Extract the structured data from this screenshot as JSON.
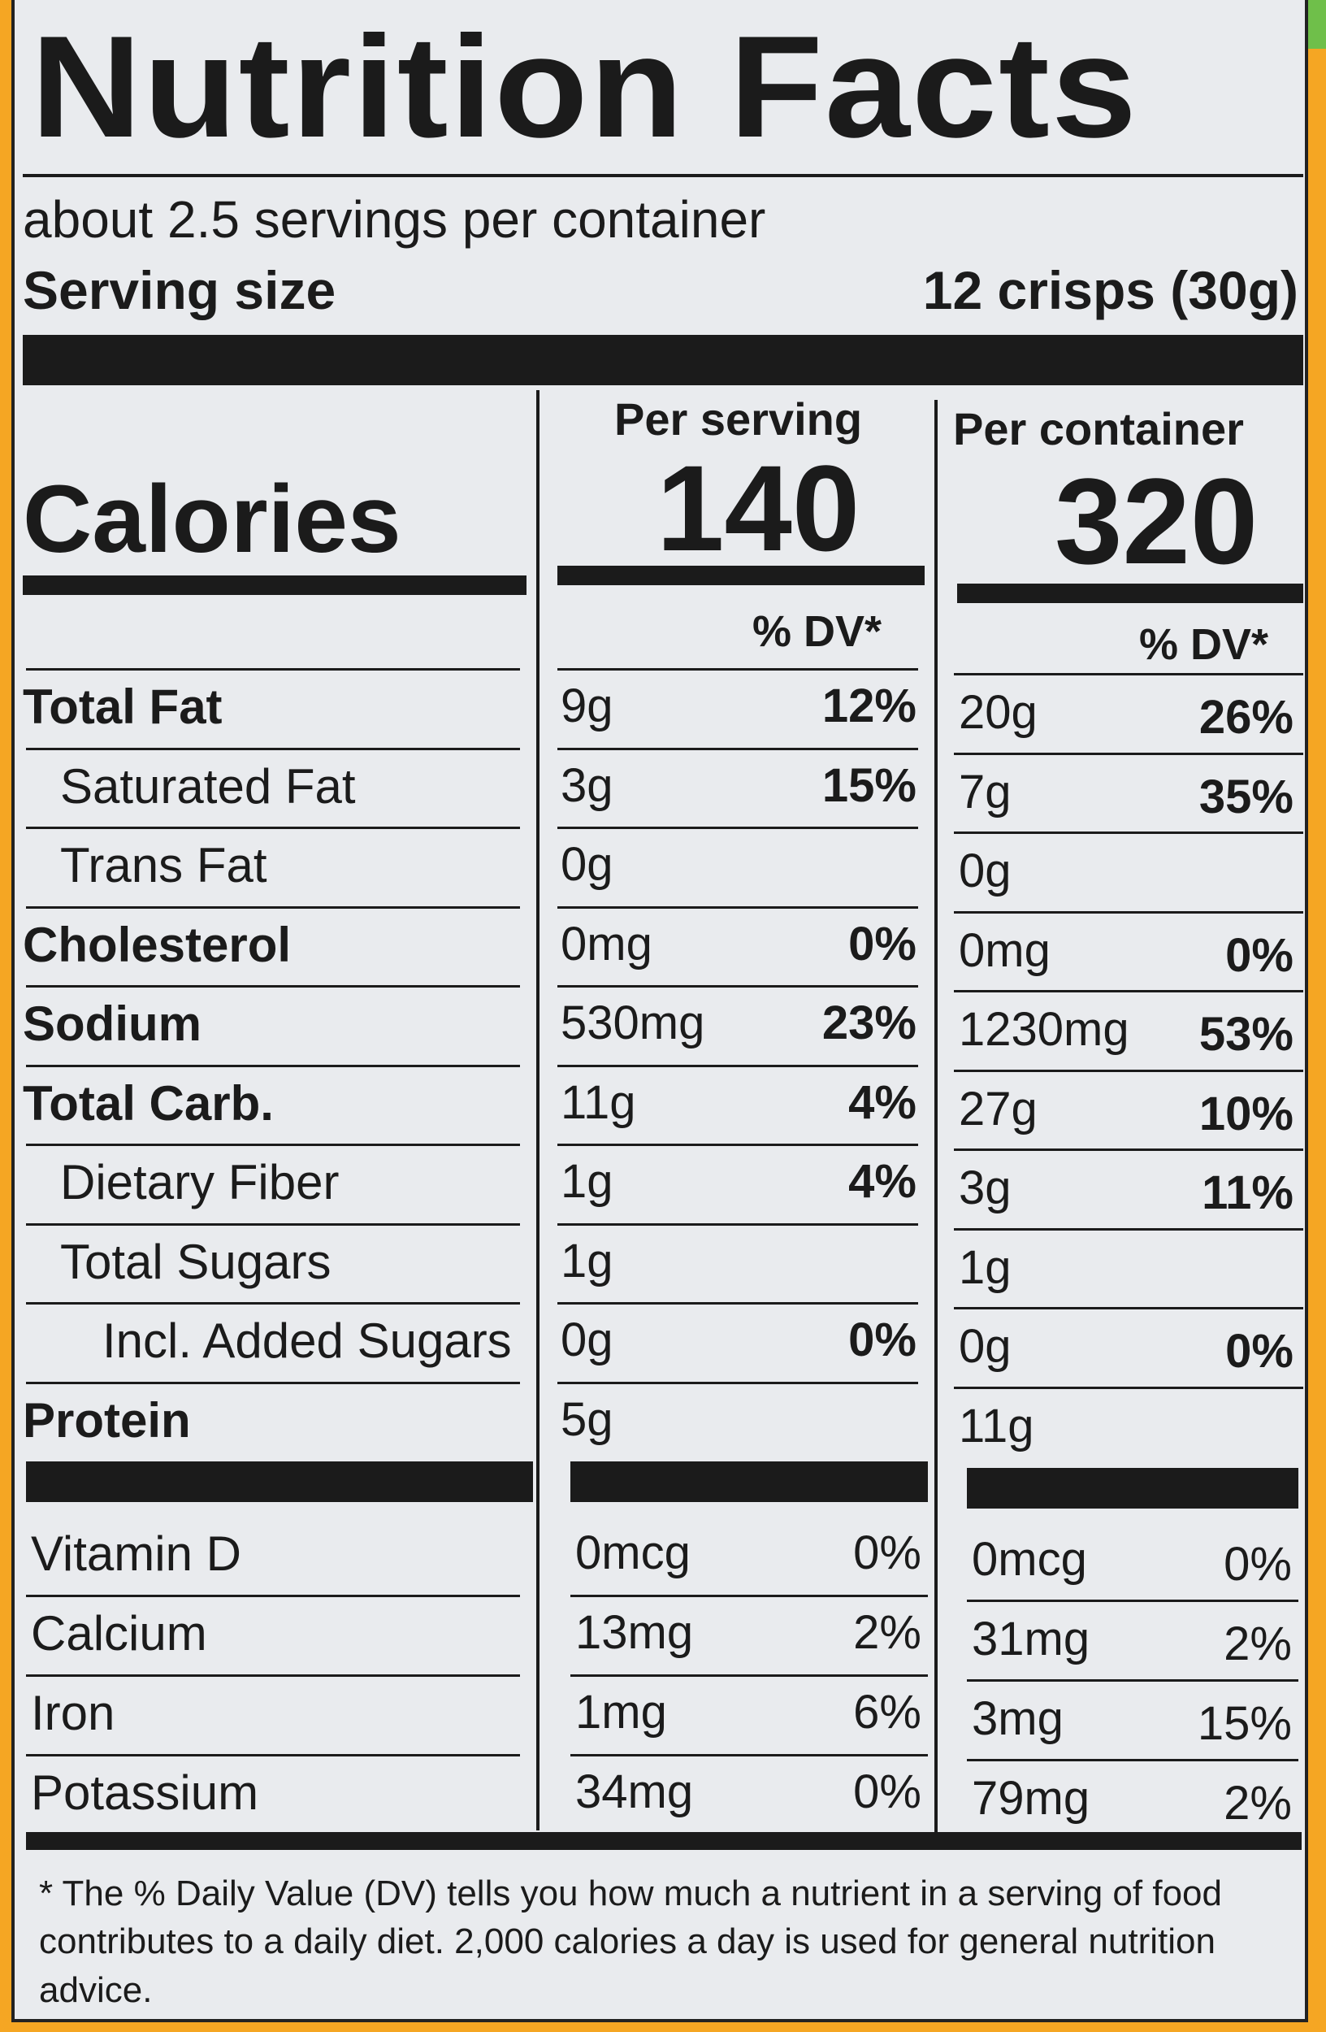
{
  "title": "Nutrition Facts",
  "servings_per_container": "about 2.5 servings per container",
  "serving_size_label": "Serving size",
  "serving_size_value": "12 crisps (30g)",
  "calories_label": "Calories",
  "per_serving_label": "Per serving",
  "per_container_label": "Per container",
  "calories_per_serving": "140",
  "calories_per_container": "320",
  "dv_header": "% DV*",
  "nutrients": [
    {
      "name": "Total Fat",
      "bold": true,
      "indent": 0,
      "s_amt": "9g",
      "s_dv": "12%",
      "c_amt": "20g",
      "c_dv": "26%"
    },
    {
      "name": "Saturated Fat",
      "bold": false,
      "indent": 1,
      "s_amt": "3g",
      "s_dv": "15%",
      "c_amt": "7g",
      "c_dv": "35%"
    },
    {
      "name": "Trans Fat",
      "bold": false,
      "indent": 1,
      "s_amt": "0g",
      "s_dv": "",
      "c_amt": "0g",
      "c_dv": ""
    },
    {
      "name": "Cholesterol",
      "bold": true,
      "indent": 0,
      "s_amt": "0mg",
      "s_dv": "0%",
      "c_amt": "0mg",
      "c_dv": "0%"
    },
    {
      "name": "Sodium",
      "bold": true,
      "indent": 0,
      "s_amt": "530mg",
      "s_dv": "23%",
      "c_amt": "1230mg",
      "c_dv": "53%"
    },
    {
      "name": "Total Carb.",
      "bold": true,
      "indent": 0,
      "s_amt": "11g",
      "s_dv": "4%",
      "c_amt": "27g",
      "c_dv": "10%"
    },
    {
      "name": "Dietary Fiber",
      "bold": false,
      "indent": 1,
      "s_amt": "1g",
      "s_dv": "4%",
      "c_amt": "3g",
      "c_dv": "11%"
    },
    {
      "name": "Total Sugars",
      "bold": false,
      "indent": 1,
      "s_amt": "1g",
      "s_dv": "",
      "c_amt": "1g",
      "c_dv": ""
    },
    {
      "name": "Incl. Added Sugars",
      "bold": false,
      "indent": 2,
      "s_amt": "0g",
      "s_dv": "0%",
      "c_amt": "0g",
      "c_dv": "0%"
    },
    {
      "name": "Protein",
      "bold": true,
      "indent": 0,
      "s_amt": "5g",
      "s_dv": "",
      "c_amt": "11g",
      "c_dv": ""
    }
  ],
  "vitamins": [
    {
      "name": "Vitamin D",
      "s_amt": "0mcg",
      "s_dv": "0%",
      "c_amt": "0mcg",
      "c_dv": "0%"
    },
    {
      "name": "Calcium",
      "s_amt": "13mg",
      "s_dv": "2%",
      "c_amt": "31mg",
      "c_dv": "2%"
    },
    {
      "name": "Iron",
      "s_amt": "1mg",
      "s_dv": "6%",
      "c_amt": "3mg",
      "c_dv": "15%"
    },
    {
      "name": "Potassium",
      "s_amt": "34mg",
      "s_dv": "0%",
      "c_amt": "79mg",
      "c_dv": "2%"
    }
  ],
  "footnote": "* The % Daily Value (DV) tells you how much a nutrient in a serving of food contributes to a daily diet. 2,000 calories a day is used for general nutrition advice.",
  "colors": {
    "background": "#f5a623",
    "label": "#e9ebee",
    "ink": "#1b1b1b"
  }
}
